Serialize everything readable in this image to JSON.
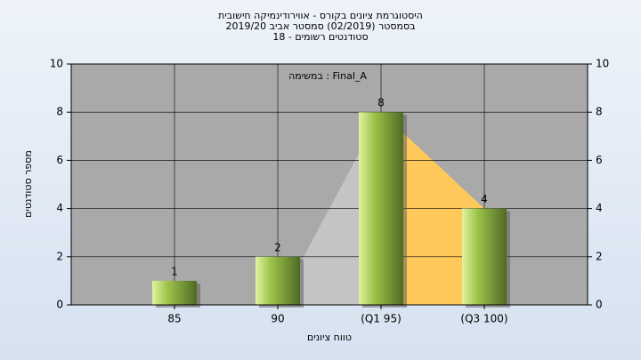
{
  "chart_data": {
    "type": "bar",
    "title": [
      "היסטוגרמת ציונים בקורס - אווירודינמיקה חישובית",
      "בסמסטר  (02/2019)  סמסטר אביב 2019/20",
      "סטודנטים רשומים - 18"
    ],
    "annotation": "במשימה : Final_A",
    "x_label": "טווח ציונים",
    "y_label": "מספר סטודנטים",
    "categories": [
      "85",
      "90",
      "(Q1 95)",
      "(Q3 100)"
    ],
    "values": [
      1,
      2,
      8,
      4
    ],
    "color": "#9cc24a",
    "ylim": [
      0,
      10
    ],
    "yticks": [
      0,
      2,
      4,
      6,
      8,
      10
    ],
    "y2lim": [
      0,
      10
    ],
    "y2ticks": [
      0,
      2,
      4,
      6,
      8,
      10
    ],
    "grid": true
  }
}
